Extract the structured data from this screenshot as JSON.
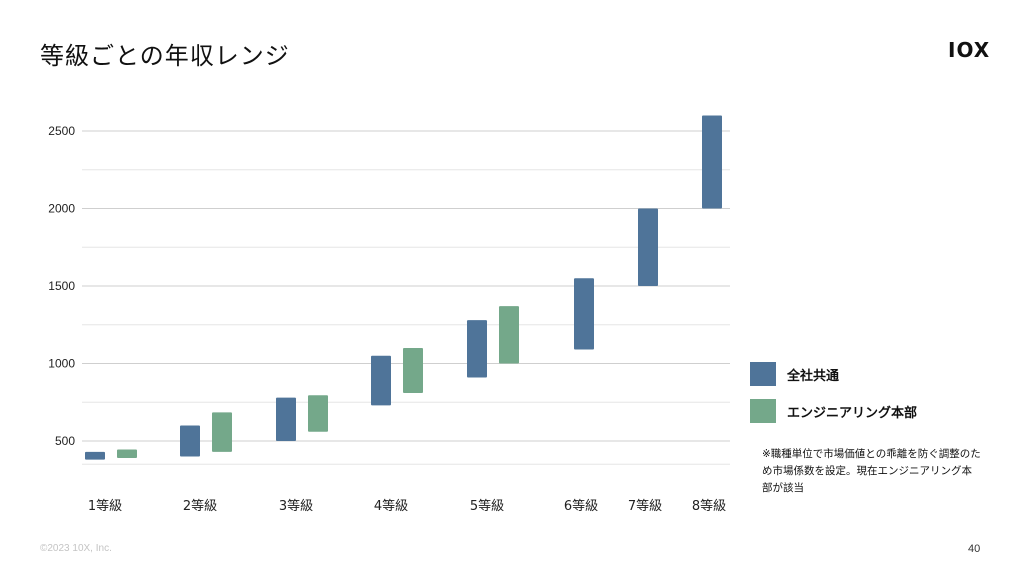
{
  "slide": {
    "title": "等級ごとの年収レンジ",
    "logo": "IOX",
    "footer": "©2023 10X, Inc.",
    "page_number": "40",
    "note": "※職種単位で市場価値との乖離を防ぐ調整のため市場係数を設定。現在エンジニアリング本部が該当"
  },
  "chart_data": {
    "type": "bar",
    "subtype": "floating-range",
    "categories": [
      "1等級",
      "2等級",
      "3等級",
      "4等級",
      "5等級",
      "6等級",
      "7等級",
      "8等級"
    ],
    "y_ticks": [
      "500",
      "1000",
      "1500",
      "2000",
      "2500"
    ],
    "ylim": [
      330,
      2620
    ],
    "grid": true,
    "legend_position": "right",
    "series": [
      {
        "name": "全社共通",
        "color": "#4f7499",
        "ranges": [
          [
            380,
            430
          ],
          [
            400,
            600
          ],
          [
            500,
            780
          ],
          [
            730,
            1050
          ],
          [
            910,
            1280
          ],
          [
            1090,
            1550
          ],
          [
            1500,
            2000
          ],
          [
            2000,
            2600
          ]
        ]
      },
      {
        "name": "エンジニアリング本部",
        "color": "#74a88a",
        "ranges": [
          [
            390,
            445
          ],
          [
            430,
            685
          ],
          [
            560,
            795
          ],
          [
            810,
            1100
          ],
          [
            1000,
            1370
          ],
          null,
          null,
          null
        ]
      }
    ]
  }
}
